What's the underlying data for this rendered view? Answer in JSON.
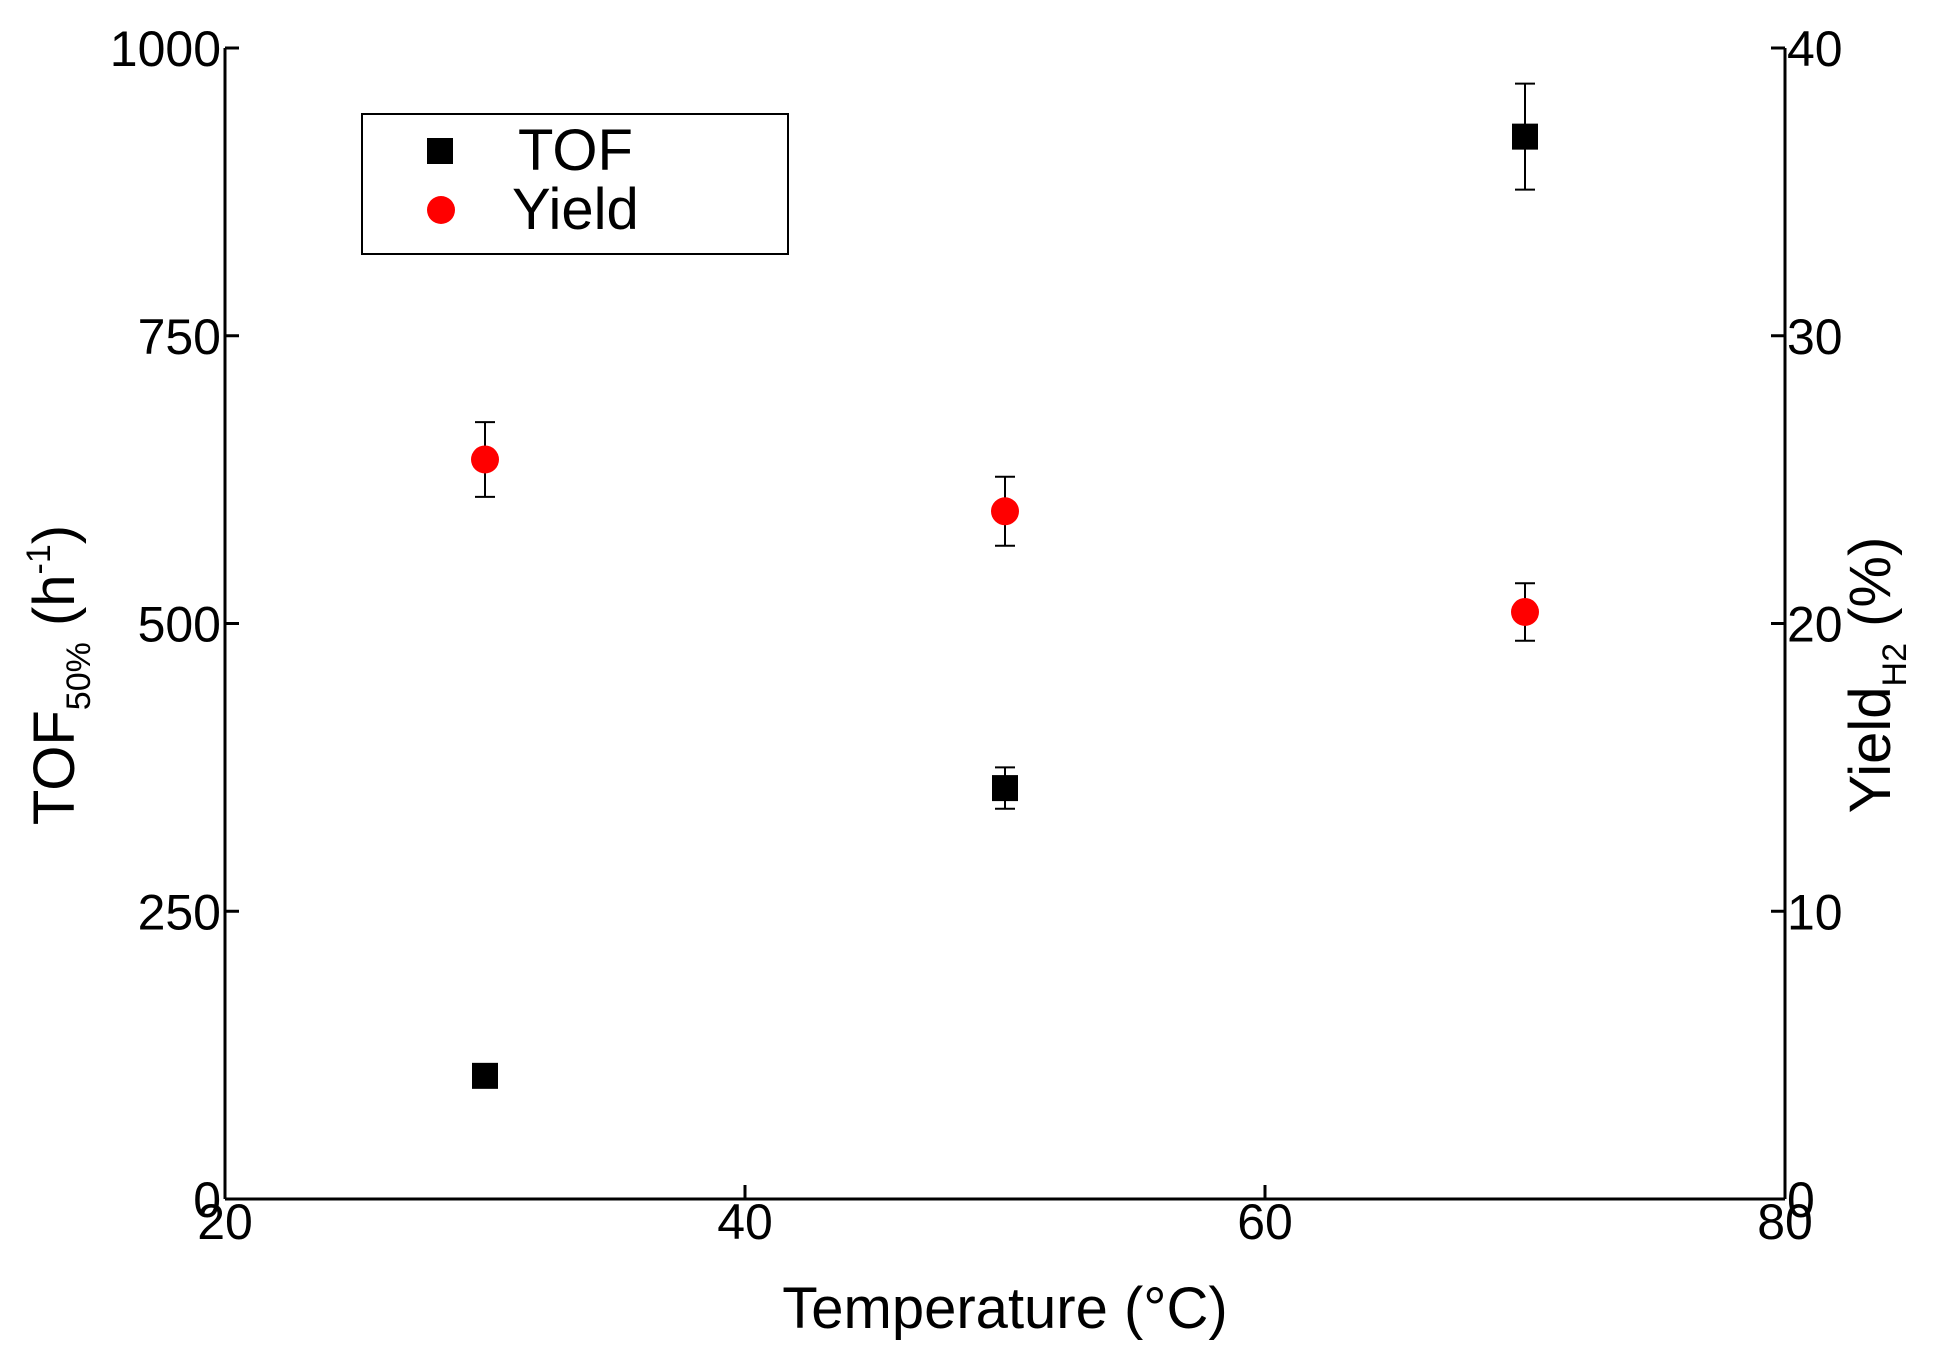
{
  "chart_data": {
    "type": "scatter",
    "title": "",
    "xlabel": "Temperature (°C)",
    "ylabel": {
      "main": "TOF",
      "sub": "50%",
      "unit_open": " (h",
      "sup": "-1",
      "unit_close": ")"
    },
    "y2label": {
      "main": "Yield",
      "sub": "H2",
      "unit": " (%)"
    },
    "xlim": [
      20,
      80
    ],
    "ylim": [
      0,
      1000
    ],
    "y2lim": [
      0,
      40
    ],
    "x_ticks": [
      20,
      40,
      60,
      80
    ],
    "y_ticks": [
      0,
      250,
      500,
      750,
      1000
    ],
    "y2_ticks": [
      0,
      10,
      20,
      30,
      40
    ],
    "grid": false,
    "legend_position": "top-left",
    "series": [
      {
        "name": "TOF",
        "axis": "left",
        "marker": "square",
        "color": "#000000",
        "points": [
          {
            "x": 30,
            "y": 107,
            "err": 0
          },
          {
            "x": 50,
            "y": 357,
            "err": 18
          },
          {
            "x": 70,
            "y": 923,
            "err": 46
          }
        ]
      },
      {
        "name": "Yield",
        "axis": "right",
        "marker": "circle",
        "color": "#ff0000",
        "points": [
          {
            "x": 30,
            "y": 25.7,
            "err": 1.3
          },
          {
            "x": 50,
            "y": 23.9,
            "err": 1.2
          },
          {
            "x": 70,
            "y": 20.4,
            "err": 1.0
          }
        ]
      }
    ]
  }
}
